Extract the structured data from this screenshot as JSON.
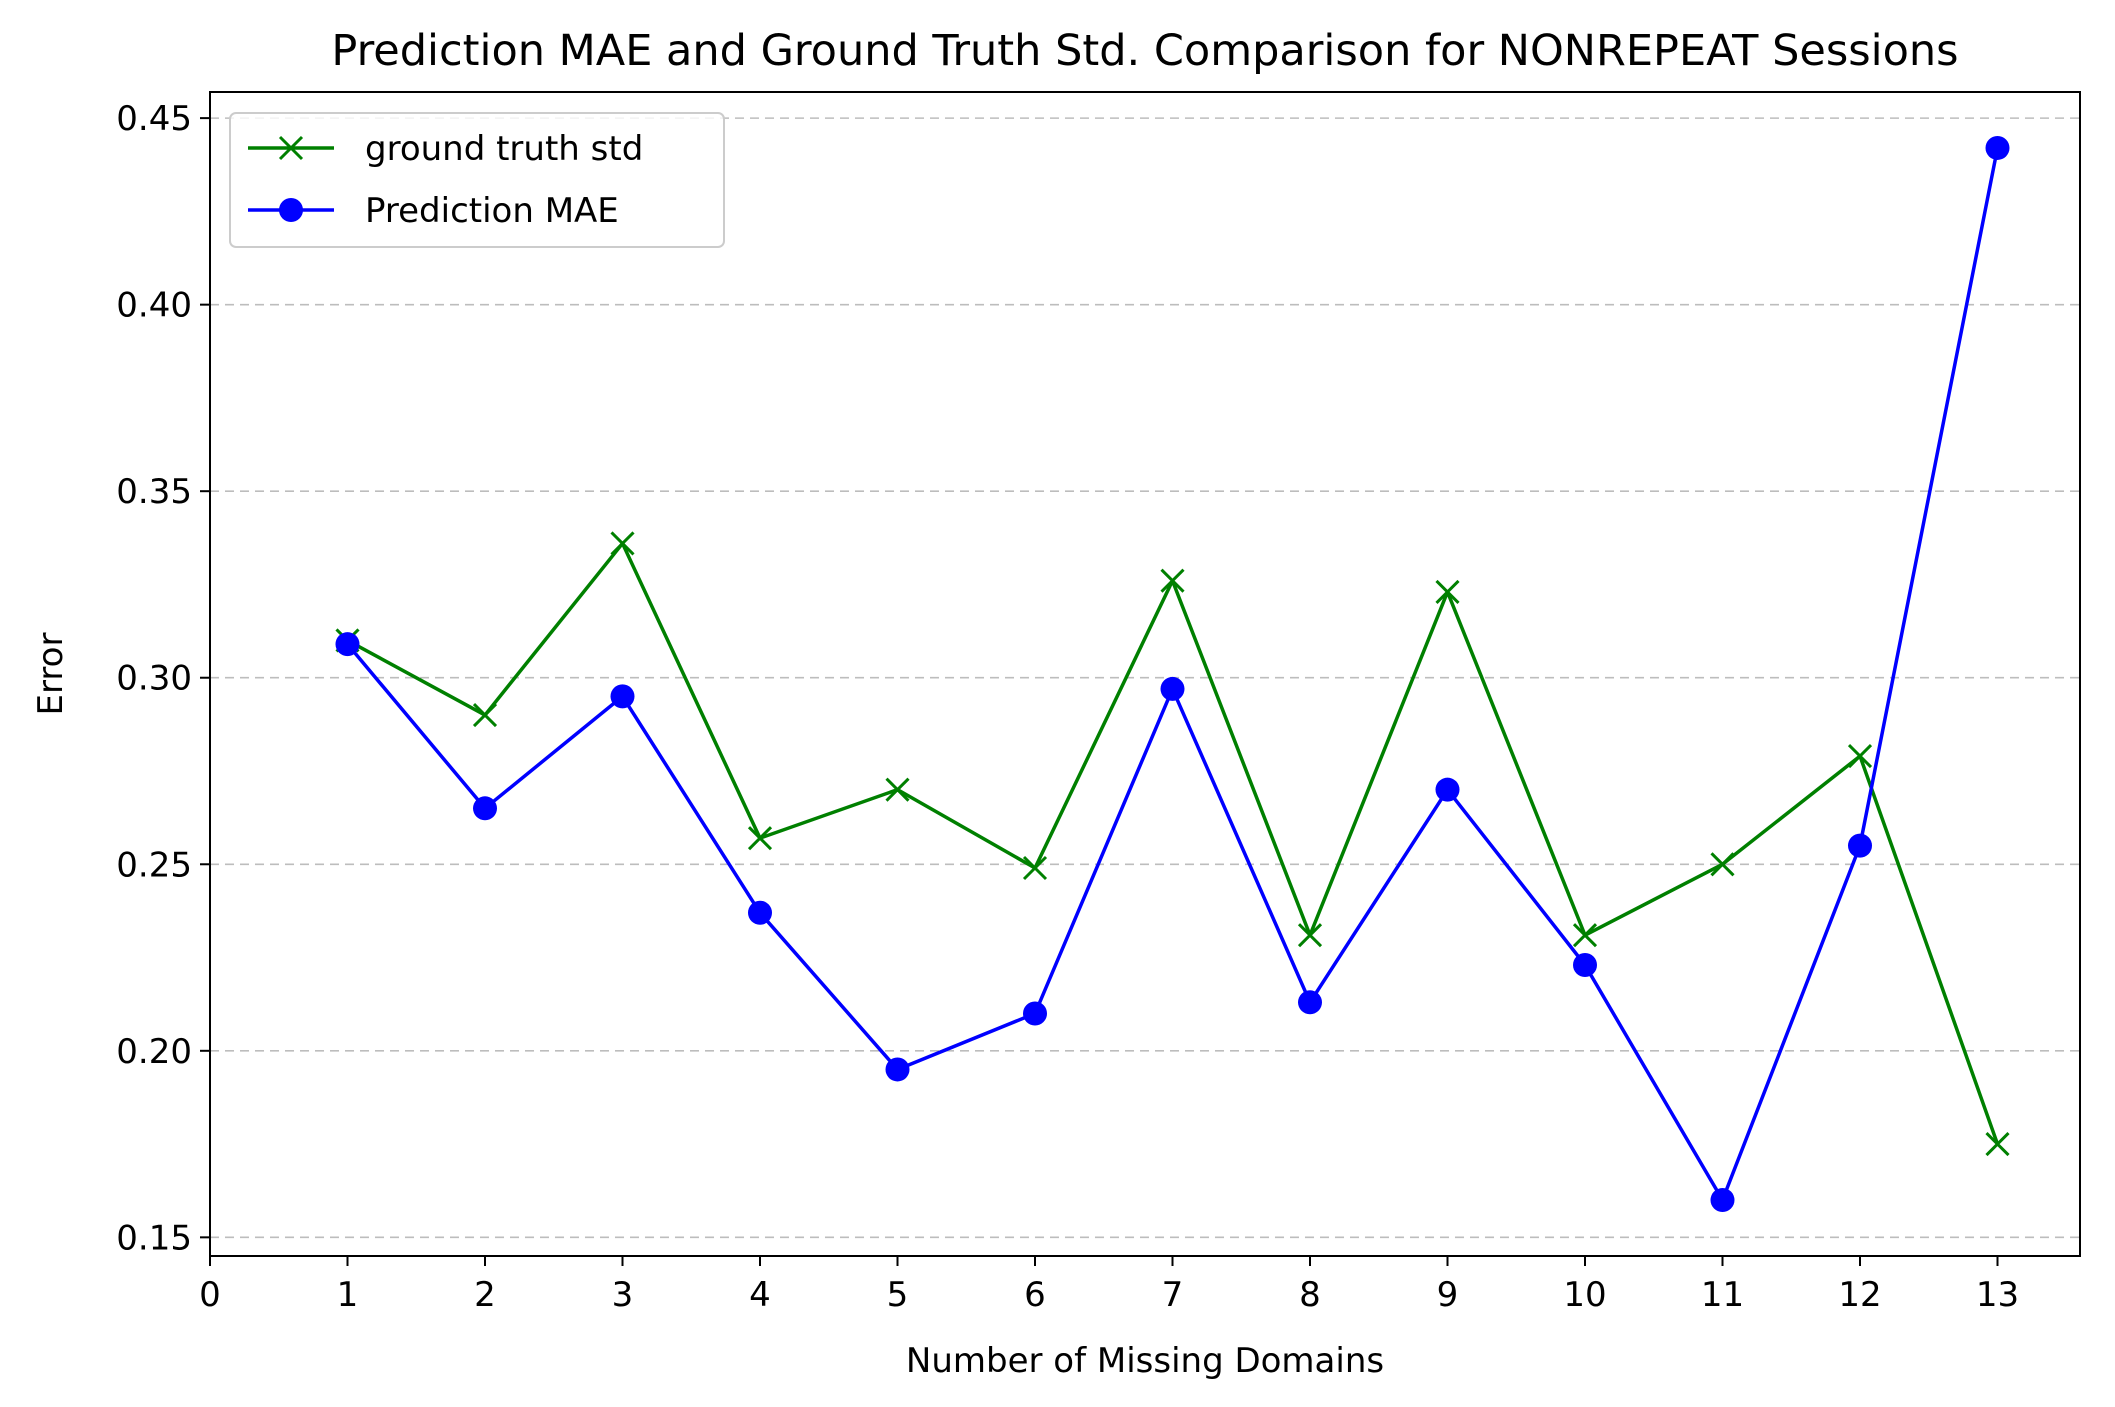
{
  "chart_data": {
    "type": "line",
    "title": "Prediction MAE and Ground Truth Std. Comparison for NONREPEAT Sessions",
    "xlabel": "Number of Missing Domains",
    "ylabel": "Error",
    "xlim": [
      0,
      13.6
    ],
    "ylim": [
      0.145,
      0.457
    ],
    "xticks": [
      0,
      1,
      2,
      3,
      4,
      5,
      6,
      7,
      8,
      9,
      10,
      11,
      12,
      13
    ],
    "yticks": [
      0.15,
      0.2,
      0.25,
      0.3,
      0.35,
      0.4,
      0.45
    ],
    "ytick_labels": [
      "0.15",
      "0.20",
      "0.25",
      "0.30",
      "0.35",
      "0.40",
      "0.45"
    ],
    "grid": "horizontal dashed",
    "legend_position": "upper-left",
    "series": [
      {
        "name": "ground truth std",
        "color": "#008000",
        "marker": "x",
        "x": [
          1,
          2,
          3,
          4,
          5,
          6,
          7,
          8,
          9,
          10,
          11,
          12,
          13
        ],
        "y": [
          0.31,
          0.29,
          0.336,
          0.257,
          0.27,
          0.249,
          0.326,
          0.231,
          0.323,
          0.231,
          0.25,
          0.279,
          0.175
        ]
      },
      {
        "name": "Prediction MAE",
        "color": "#0000ff",
        "marker": "circle",
        "x": [
          1,
          2,
          3,
          4,
          5,
          6,
          7,
          8,
          9,
          10,
          11,
          12,
          13
        ],
        "y": [
          0.309,
          0.265,
          0.295,
          0.237,
          0.195,
          0.21,
          0.297,
          0.213,
          0.27,
          0.223,
          0.16,
          0.255,
          0.442
        ]
      }
    ]
  }
}
